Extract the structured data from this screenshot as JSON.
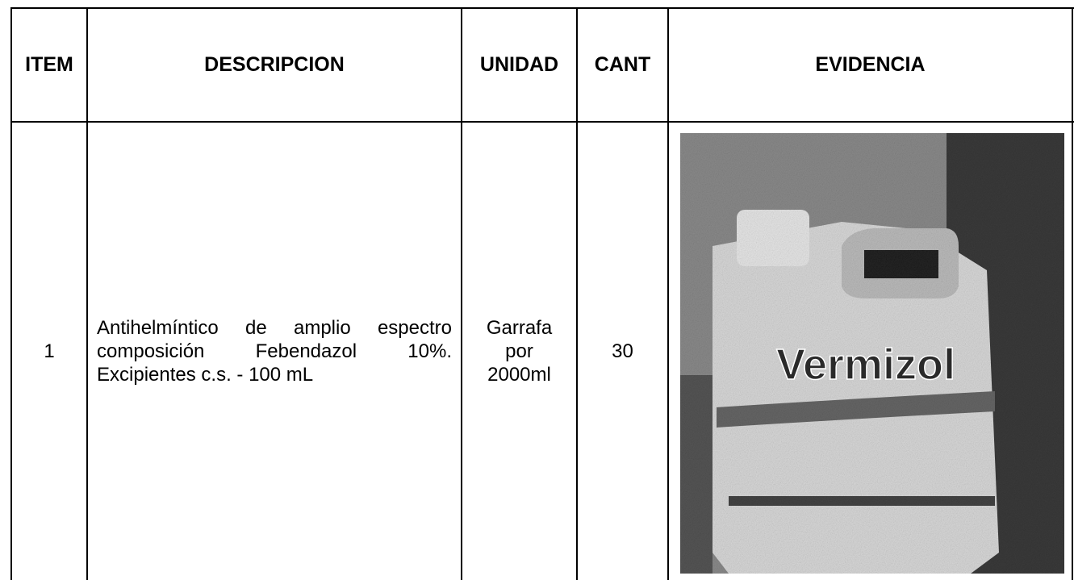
{
  "table": {
    "header": [
      "ITEM",
      "DESCRIPCION",
      "UNIDAD",
      "CANT",
      "EVIDENCIA"
    ],
    "rows": [
      {
        "item": "1",
        "description": "Antihelmíntico de amplio espectro composición Febendazol 10%. Excipientes c.s. - 100 mL",
        "unit": "Garrafa por 2000ml",
        "quantity": "30",
        "evidence_text": "Vermizol"
      }
    ]
  }
}
